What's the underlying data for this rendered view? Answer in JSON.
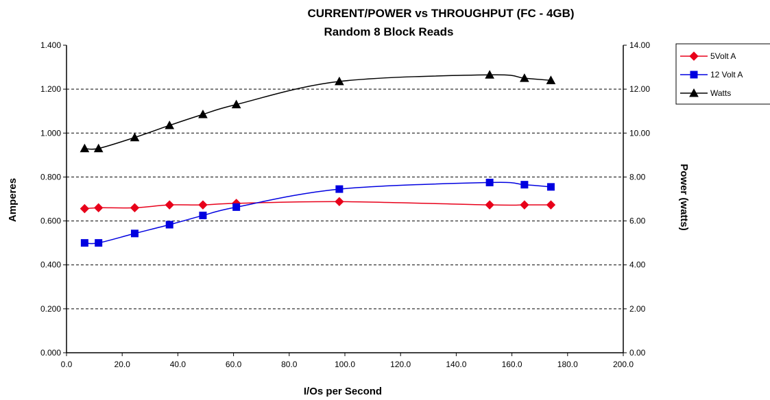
{
  "chart_data": {
    "type": "line",
    "title": "CURRENT/POWER vs THROUGHPUT (FC - 4GB)",
    "subtitle": "Random 8 Block Reads",
    "xlabel": "I/Os per Second",
    "ylabel": "Amperes",
    "y2label": "Power (watts)",
    "xlim": [
      0,
      200
    ],
    "ylim": [
      0,
      1.4
    ],
    "y2lim": [
      0,
      14
    ],
    "x_ticks": [
      "0.0",
      "20.0",
      "40.0",
      "60.0",
      "80.0",
      "100.0",
      "120.0",
      "140.0",
      "160.0",
      "180.0",
      "200.0"
    ],
    "y_ticks": [
      "0.000",
      "0.200",
      "0.400",
      "0.600",
      "0.800",
      "1.000",
      "1.200",
      "1.400"
    ],
    "y2_ticks": [
      "0.00",
      "2.00",
      "4.00",
      "6.00",
      "8.00",
      "10.00",
      "12.00",
      "14.00"
    ],
    "grid": "horizontal dashed",
    "legend": "right",
    "series": [
      {
        "name": "5Volt A",
        "axis": "left",
        "color": "#e8001a",
        "marker": "diamond",
        "x": [
          6.5,
          11.5,
          24.5,
          37,
          49,
          61,
          98,
          152,
          164.5,
          174
        ],
        "y": [
          0.656,
          0.66,
          0.66,
          0.673,
          0.673,
          0.68,
          0.688,
          0.673,
          0.673,
          0.673
        ]
      },
      {
        "name": "12 Volt A",
        "axis": "left",
        "color": "#0000e0",
        "marker": "square",
        "x": [
          6.5,
          11.5,
          24.5,
          37,
          49,
          61,
          98,
          152,
          164.5,
          174
        ],
        "y": [
          0.5,
          0.5,
          0.543,
          0.583,
          0.625,
          0.663,
          0.745,
          0.775,
          0.765,
          0.755
        ]
      },
      {
        "name": "Watts",
        "axis": "right",
        "color": "#000000",
        "marker": "triangle",
        "x": [
          6.5,
          11.5,
          24.5,
          37,
          49,
          61,
          98,
          152,
          164.5,
          174
        ],
        "y": [
          9.3,
          9.3,
          9.8,
          10.35,
          10.85,
          11.3,
          12.35,
          12.65,
          12.5,
          12.4
        ]
      }
    ]
  }
}
